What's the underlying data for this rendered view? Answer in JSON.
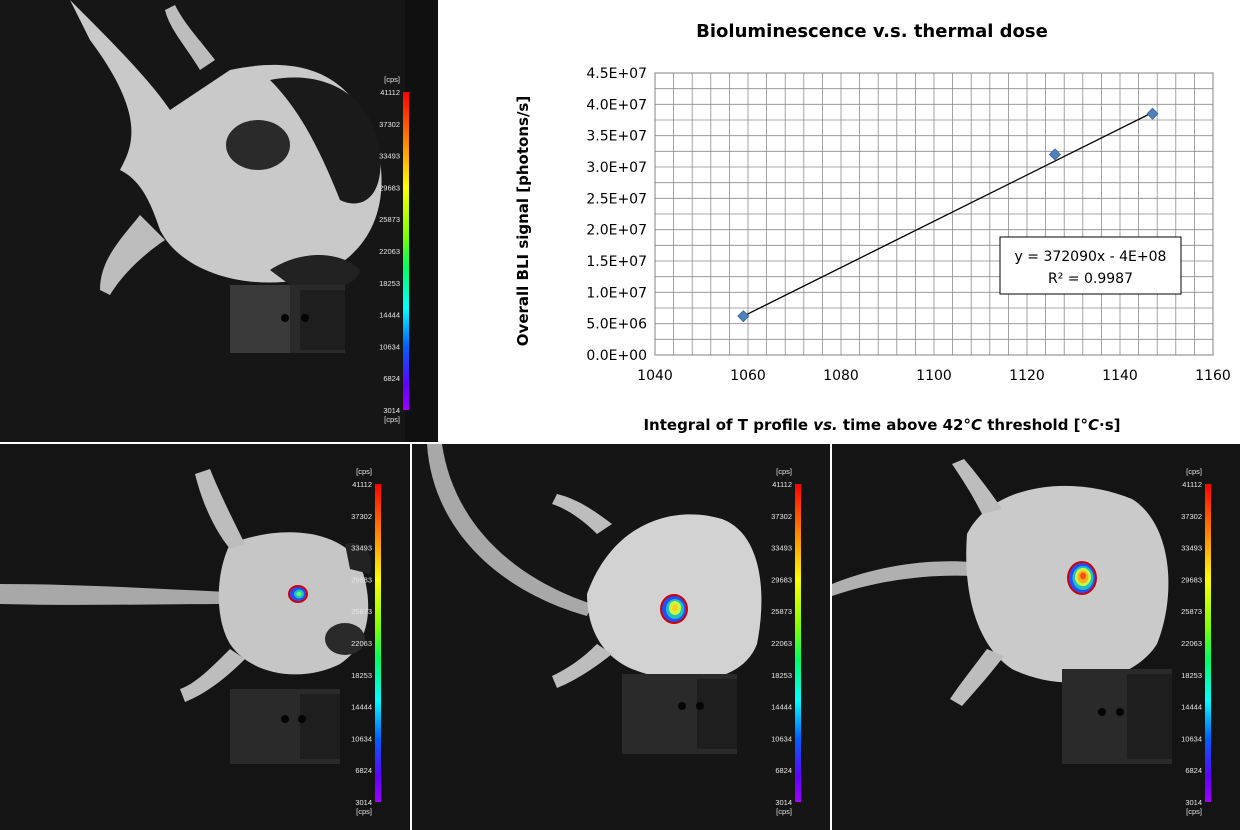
{
  "chart_data": {
    "type": "scatter",
    "title": "Bioluminescence v.s. thermal dose",
    "xlabel_parts": [
      "Integral of T profile ",
      "vs.",
      " time above 42°",
      "C",
      " threshold [°",
      "C",
      "·s]"
    ],
    "ylabel": "Overall BLI signal [photons/s]",
    "xlim": [
      1040,
      1160
    ],
    "ylim": [
      0,
      45000000
    ],
    "x_ticks": [
      1040,
      1060,
      1080,
      1100,
      1120,
      1140,
      1160
    ],
    "y_ticks": [
      "0.0E+00",
      "5.0E+06",
      "1.0E+07",
      "1.5E+07",
      "2.0E+07",
      "2.5E+07",
      "3.0E+07",
      "3.5E+07",
      "4.0E+07",
      "4.5E+07"
    ],
    "points": [
      {
        "x": 1059,
        "y": 6200000
      },
      {
        "x": 1126,
        "y": 32000000
      },
      {
        "x": 1147,
        "y": 38500000
      }
    ],
    "trendline": {
      "x_start": 1059,
      "y_start": 6200000,
      "x_end": 1147,
      "y_end": 38700000
    },
    "equation": "y = 372090x - 4E+08",
    "r_squared": "R² = 0.9987",
    "grid": true,
    "marker_color": "#4f81bd"
  },
  "colorbar": {
    "unit": "[cps]",
    "ticks": [
      "41112",
      "37302",
      "33493",
      "29683",
      "25873",
      "22063",
      "18253",
      "14444",
      "10634",
      "6824",
      "3014"
    ]
  }
}
